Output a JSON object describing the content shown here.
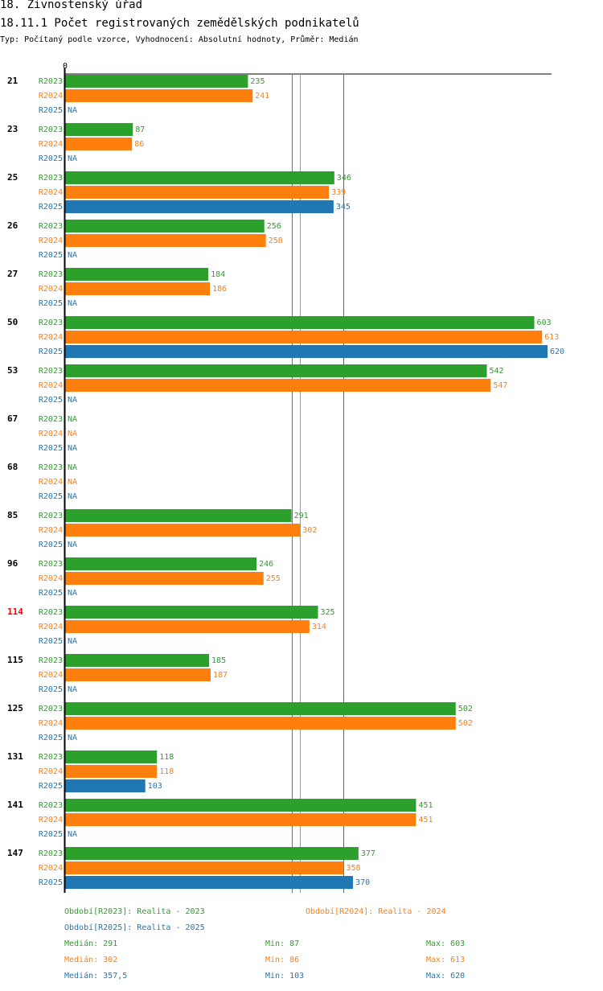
{
  "header": {
    "title": "18. Živnostenský úřad",
    "subtitle": "18.11.1 Počet registrovaných zemědělských podnikatelů",
    "description": "Typ: Počítaný podle vzorce, Vyhodnocení: Absolutní hodnoty, Průměr: Medián"
  },
  "chart_data": {
    "type": "bar",
    "orientation": "horizontal",
    "zero_label": "0",
    "na_label": "NA",
    "xlim": [
      0,
      620
    ],
    "categories": [
      "21",
      "23",
      "25",
      "26",
      "27",
      "50",
      "53",
      "67",
      "68",
      "85",
      "96",
      "114",
      "115",
      "125",
      "131",
      "141",
      "147"
    ],
    "highlighted_category": "114",
    "series": [
      {
        "name": "R2023",
        "color": "#2ca02c",
        "values": [
          235,
          87,
          346,
          256,
          184,
          603,
          542,
          null,
          null,
          291,
          246,
          325,
          185,
          502,
          118,
          451,
          377
        ]
      },
      {
        "name": "R2024",
        "color": "#ff7f0e",
        "values": [
          241,
          86,
          339,
          258,
          186,
          613,
          547,
          null,
          null,
          302,
          255,
          314,
          187,
          502,
          118,
          451,
          358
        ]
      },
      {
        "name": "R2025",
        "color": "#1f77b4",
        "values": [
          null,
          null,
          345,
          null,
          null,
          620,
          null,
          null,
          null,
          null,
          null,
          null,
          null,
          null,
          103,
          null,
          370
        ]
      }
    ],
    "reference_lines": [
      {
        "series": "R2023",
        "label": "Medián",
        "value": 291
      },
      {
        "series": "R2024",
        "label": "Medián",
        "value": 302
      },
      {
        "series": "R2025",
        "label": "Medián",
        "value": 357.5
      }
    ]
  },
  "legend": {
    "r2023": "Období[R2023]: Realita - 2023",
    "r2024": "Období[R2024]: Realita - 2024",
    "r2025": "Období[R2025]: Realita - 2025"
  },
  "stats": {
    "r2023": {
      "median": "Medián: 291",
      "min": "Min: 87",
      "max": "Max: 603"
    },
    "r2024": {
      "median": "Medián: 302",
      "min": "Min: 86",
      "max": "Max: 613"
    },
    "r2025": {
      "median": "Medián: 357,5",
      "min": "Min: 103",
      "max": "Max: 620"
    }
  },
  "colors": {
    "r2023": "#2ca02c",
    "r2024": "#ff7f0e",
    "r2025": "#1f77b4",
    "highlight": "#ff0000"
  }
}
